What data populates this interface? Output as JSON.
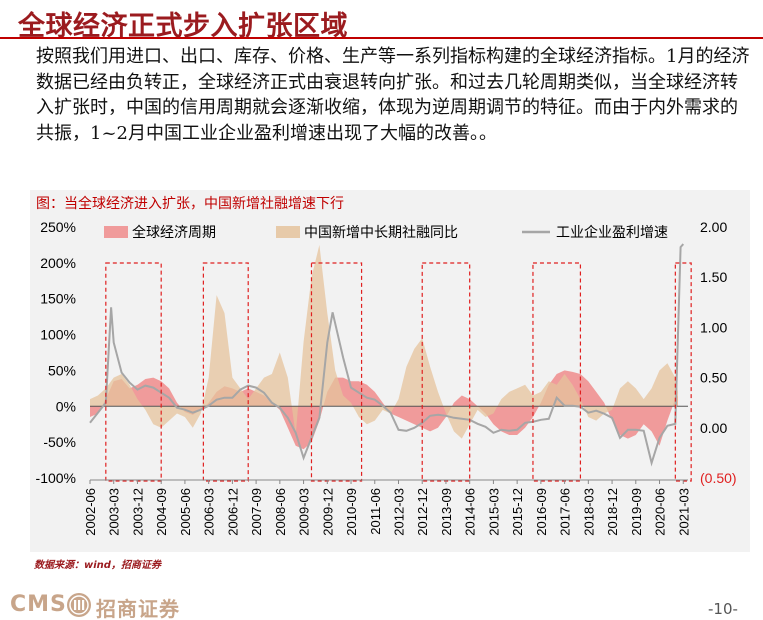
{
  "header": {
    "title": "全球经济正式步入扩张区域"
  },
  "body": {
    "paragraph": "按照我们用进口、出口、库存、价格、生产等一系列指标构建的全球经济指标。1月的经济数据已经由负转正，全球经济正式由衰退转向扩张。和过去几轮周期类似，当全球经济转入扩张时，中国的信用周期就会逐渐收缩，体现为逆周期调节的特征。而由于内外需求的共振，1~2月中国工业企业盈利增速出现了大幅的改善。。"
  },
  "chart_data": {
    "type": "area",
    "title": "图：当全球经济进入扩张，中国新增社融增速下行",
    "x_ticks": [
      "2002-06",
      "2003-03",
      "2003-12",
      "2004-09",
      "2005-06",
      "2006-03",
      "2006-12",
      "2007-09",
      "2008-06",
      "2009-03",
      "2009-12",
      "2010-09",
      "2011-06",
      "2012-03",
      "2012-12",
      "2013-09",
      "2014-06",
      "2015-03",
      "2015-12",
      "2016-09",
      "2017-06",
      "2018-03",
      "2018-12",
      "2019-09",
      "2020-06",
      "2021-03"
    ],
    "y_left": {
      "ticks": [
        "250%",
        "200%",
        "150%",
        "100%",
        "50%",
        "0%",
        "-50%",
        "-100%"
      ],
      "range": [
        -100,
        250
      ]
    },
    "y_right": {
      "ticks": [
        "2.00",
        "1.50",
        "1.00",
        "0.50",
        "0.00",
        "(0.50)"
      ],
      "range": [
        -0.5,
        2.0
      ]
    },
    "legend": [
      "全球经济周期",
      "中国新增中长期社融同比",
      "工业企业盈利增速"
    ],
    "colors": {
      "global_cycle": "#f08c8c",
      "social_financing": "#e5c39c",
      "profit": "#a6a6a6",
      "box": "#e02020"
    },
    "series": [
      {
        "name": "全球经济周期",
        "axis": "left",
        "points": [
          [
            "2002-06",
            -15
          ],
          [
            "2002-09",
            -10
          ],
          [
            "2002-12",
            10
          ],
          [
            "2003-03",
            35
          ],
          [
            "2003-06",
            38
          ],
          [
            "2003-09",
            25
          ],
          [
            "2003-12",
            30
          ],
          [
            "2004-03",
            38
          ],
          [
            "2004-06",
            40
          ],
          [
            "2004-09",
            35
          ],
          [
            "2004-12",
            25
          ],
          [
            "2005-03",
            5
          ],
          [
            "2005-06",
            -8
          ],
          [
            "2005-09",
            -12
          ],
          [
            "2005-12",
            -5
          ],
          [
            "2006-03",
            5
          ],
          [
            "2006-06",
            20
          ],
          [
            "2006-09",
            28
          ],
          [
            "2006-12",
            25
          ],
          [
            "2007-03",
            20
          ],
          [
            "2007-06",
            25
          ],
          [
            "2007-09",
            20
          ],
          [
            "2007-12",
            15
          ],
          [
            "2008-03",
            5
          ],
          [
            "2008-06",
            -5
          ],
          [
            "2008-09",
            -30
          ],
          [
            "2008-12",
            -55
          ],
          [
            "2009-03",
            -60
          ],
          [
            "2009-06",
            -50
          ],
          [
            "2009-09",
            -20
          ],
          [
            "2009-12",
            20
          ],
          [
            "2010-03",
            40
          ],
          [
            "2010-06",
            40
          ],
          [
            "2010-09",
            35
          ],
          [
            "2010-12",
            35
          ],
          [
            "2011-03",
            30
          ],
          [
            "2011-06",
            20
          ],
          [
            "2011-09",
            5
          ],
          [
            "2011-12",
            -10
          ],
          [
            "2012-03",
            -15
          ],
          [
            "2012-06",
            -20
          ],
          [
            "2012-09",
            -25
          ],
          [
            "2012-12",
            -30
          ],
          [
            "2013-03",
            -35
          ],
          [
            "2013-06",
            -30
          ],
          [
            "2013-09",
            -15
          ],
          [
            "2013-12",
            5
          ],
          [
            "2014-03",
            15
          ],
          [
            "2014-06",
            10
          ],
          [
            "2014-09",
            0
          ],
          [
            "2014-12",
            -10
          ],
          [
            "2015-03",
            -25
          ],
          [
            "2015-06",
            -35
          ],
          [
            "2015-09",
            -40
          ],
          [
            "2015-12",
            -40
          ],
          [
            "2016-03",
            -30
          ],
          [
            "2016-06",
            -15
          ],
          [
            "2016-09",
            5
          ],
          [
            "2016-12",
            30
          ],
          [
            "2017-03",
            45
          ],
          [
            "2017-06",
            50
          ],
          [
            "2017-09",
            48
          ],
          [
            "2017-12",
            45
          ],
          [
            "2018-03",
            35
          ],
          [
            "2018-06",
            20
          ],
          [
            "2018-09",
            5
          ],
          [
            "2018-12",
            -20
          ],
          [
            "2019-03",
            -40
          ],
          [
            "2019-06",
            -45
          ],
          [
            "2019-09",
            -40
          ],
          [
            "2019-12",
            -25
          ],
          [
            "2020-03",
            -35
          ],
          [
            "2020-06",
            -55
          ],
          [
            "2020-09",
            -20
          ],
          [
            "2020-12",
            10
          ],
          [
            "2021-01",
            15
          ]
        ]
      },
      {
        "name": "中国新增中长期社融同比",
        "axis": "left",
        "points": [
          [
            "2002-06",
            10
          ],
          [
            "2002-09",
            15
          ],
          [
            "2002-12",
            25
          ],
          [
            "2003-03",
            40
          ],
          [
            "2003-06",
            45
          ],
          [
            "2003-09",
            30
          ],
          [
            "2003-12",
            10
          ],
          [
            "2004-03",
            -5
          ],
          [
            "2004-06",
            -25
          ],
          [
            "2004-09",
            -30
          ],
          [
            "2004-12",
            -20
          ],
          [
            "2005-03",
            -10
          ],
          [
            "2005-06",
            -15
          ],
          [
            "2005-09",
            -30
          ],
          [
            "2005-12",
            -10
          ],
          [
            "2006-03",
            40
          ],
          [
            "2006-06",
            155
          ],
          [
            "2006-09",
            130
          ],
          [
            "2006-12",
            40
          ],
          [
            "2007-03",
            25
          ],
          [
            "2007-06",
            10
          ],
          [
            "2007-09",
            25
          ],
          [
            "2007-12",
            40
          ],
          [
            "2008-03",
            45
          ],
          [
            "2008-06",
            75
          ],
          [
            "2008-09",
            40
          ],
          [
            "2008-12",
            -40
          ],
          [
            "2009-03",
            90
          ],
          [
            "2009-06",
            180
          ],
          [
            "2009-09",
            225
          ],
          [
            "2009-12",
            130
          ],
          [
            "2010-03",
            50
          ],
          [
            "2010-06",
            15
          ],
          [
            "2010-09",
            5
          ],
          [
            "2010-12",
            -15
          ],
          [
            "2011-03",
            -25
          ],
          [
            "2011-06",
            -20
          ],
          [
            "2011-09",
            -5
          ],
          [
            "2011-12",
            -10
          ],
          [
            "2012-03",
            10
          ],
          [
            "2012-06",
            55
          ],
          [
            "2012-09",
            80
          ],
          [
            "2012-12",
            95
          ],
          [
            "2013-03",
            55
          ],
          [
            "2013-06",
            20
          ],
          [
            "2013-09",
            -10
          ],
          [
            "2013-12",
            -35
          ],
          [
            "2014-03",
            -45
          ],
          [
            "2014-06",
            -25
          ],
          [
            "2014-09",
            -5
          ],
          [
            "2014-12",
            -15
          ],
          [
            "2015-03",
            -10
          ],
          [
            "2015-06",
            10
          ],
          [
            "2015-09",
            20
          ],
          [
            "2015-12",
            25
          ],
          [
            "2016-03",
            30
          ],
          [
            "2016-06",
            15
          ],
          [
            "2016-09",
            20
          ],
          [
            "2016-12",
            35
          ],
          [
            "2017-03",
            30
          ],
          [
            "2017-06",
            45
          ],
          [
            "2017-09",
            30
          ],
          [
            "2017-12",
            10
          ],
          [
            "2018-03",
            -15
          ],
          [
            "2018-06",
            -20
          ],
          [
            "2018-09",
            -10
          ],
          [
            "2018-12",
            -5
          ],
          [
            "2019-03",
            25
          ],
          [
            "2019-06",
            35
          ],
          [
            "2019-09",
            25
          ],
          [
            "2019-12",
            10
          ],
          [
            "2020-03",
            25
          ],
          [
            "2020-06",
            50
          ],
          [
            "2020-09",
            60
          ],
          [
            "2020-12",
            40
          ],
          [
            "2021-01",
            20
          ]
        ]
      },
      {
        "name": "工业企业盈利增速",
        "axis": "right",
        "points": [
          [
            "2002-06",
            0.05
          ],
          [
            "2002-09",
            0.15
          ],
          [
            "2002-12",
            0.25
          ],
          [
            "2003-02",
            1.2
          ],
          [
            "2003-03",
            0.85
          ],
          [
            "2003-06",
            0.55
          ],
          [
            "2003-09",
            0.45
          ],
          [
            "2003-12",
            0.38
          ],
          [
            "2004-03",
            0.42
          ],
          [
            "2004-06",
            0.4
          ],
          [
            "2004-09",
            0.35
          ],
          [
            "2004-12",
            0.3
          ],
          [
            "2005-03",
            0.2
          ],
          [
            "2005-06",
            0.18
          ],
          [
            "2005-09",
            0.15
          ],
          [
            "2005-12",
            0.18
          ],
          [
            "2006-03",
            0.22
          ],
          [
            "2006-06",
            0.28
          ],
          [
            "2006-09",
            0.3
          ],
          [
            "2006-12",
            0.3
          ],
          [
            "2007-03",
            0.38
          ],
          [
            "2007-06",
            0.42
          ],
          [
            "2007-09",
            0.4
          ],
          [
            "2007-12",
            0.35
          ],
          [
            "2008-03",
            0.25
          ],
          [
            "2008-06",
            0.2
          ],
          [
            "2008-09",
            0.1
          ],
          [
            "2008-12",
            -0.05
          ],
          [
            "2009-03",
            -0.3
          ],
          [
            "2009-06",
            -0.1
          ],
          [
            "2009-09",
            0.1
          ],
          [
            "2009-12",
            0.85
          ],
          [
            "2010-02",
            1.15
          ],
          [
            "2010-06",
            0.7
          ],
          [
            "2010-09",
            0.4
          ],
          [
            "2010-12",
            0.35
          ],
          [
            "2011-03",
            0.3
          ],
          [
            "2011-06",
            0.28
          ],
          [
            "2011-09",
            0.22
          ],
          [
            "2011-12",
            0.15
          ],
          [
            "2012-03",
            -0.02
          ],
          [
            "2012-06",
            -0.03
          ],
          [
            "2012-09",
            0.0
          ],
          [
            "2012-12",
            0.05
          ],
          [
            "2013-03",
            0.12
          ],
          [
            "2013-06",
            0.13
          ],
          [
            "2013-09",
            0.12
          ],
          [
            "2013-12",
            0.1
          ],
          [
            "2014-03",
            0.09
          ],
          [
            "2014-06",
            0.08
          ],
          [
            "2014-09",
            0.04
          ],
          [
            "2014-12",
            0.01
          ],
          [
            "2015-03",
            -0.05
          ],
          [
            "2015-06",
            -0.02
          ],
          [
            "2015-09",
            -0.03
          ],
          [
            "2015-12",
            -0.02
          ],
          [
            "2016-03",
            0.05
          ],
          [
            "2016-06",
            0.06
          ],
          [
            "2016-09",
            0.08
          ],
          [
            "2016-12",
            0.09
          ],
          [
            "2017-03",
            0.3
          ],
          [
            "2017-06",
            0.22
          ],
          [
            "2017-09",
            0.22
          ],
          [
            "2017-12",
            0.21
          ],
          [
            "2018-03",
            0.15
          ],
          [
            "2018-06",
            0.17
          ],
          [
            "2018-09",
            0.14
          ],
          [
            "2018-12",
            0.1
          ],
          [
            "2019-03",
            -0.1
          ],
          [
            "2019-06",
            -0.02
          ],
          [
            "2019-09",
            -0.02
          ],
          [
            "2019-12",
            -0.03
          ],
          [
            "2020-03",
            -0.35
          ],
          [
            "2020-06",
            -0.1
          ],
          [
            "2020-09",
            0.02
          ],
          [
            "2020-12",
            0.04
          ],
          [
            "2021-02",
            1.8
          ],
          [
            "2021-03",
            1.83
          ]
        ]
      }
    ],
    "highlight_periods": [
      [
        "2002-12",
        "2004-09"
      ],
      [
        "2006-01",
        "2007-06"
      ],
      [
        "2009-06",
        "2011-01"
      ],
      [
        "2012-12",
        "2014-06"
      ],
      [
        "2016-06",
        "2017-12"
      ],
      [
        "2020-12",
        "2021-06"
      ]
    ]
  },
  "footer": {
    "source": "数据来源：wind，招商证券",
    "brand_latin": "CMS",
    "brand_chinese": "招商证券",
    "page": "-10-"
  }
}
